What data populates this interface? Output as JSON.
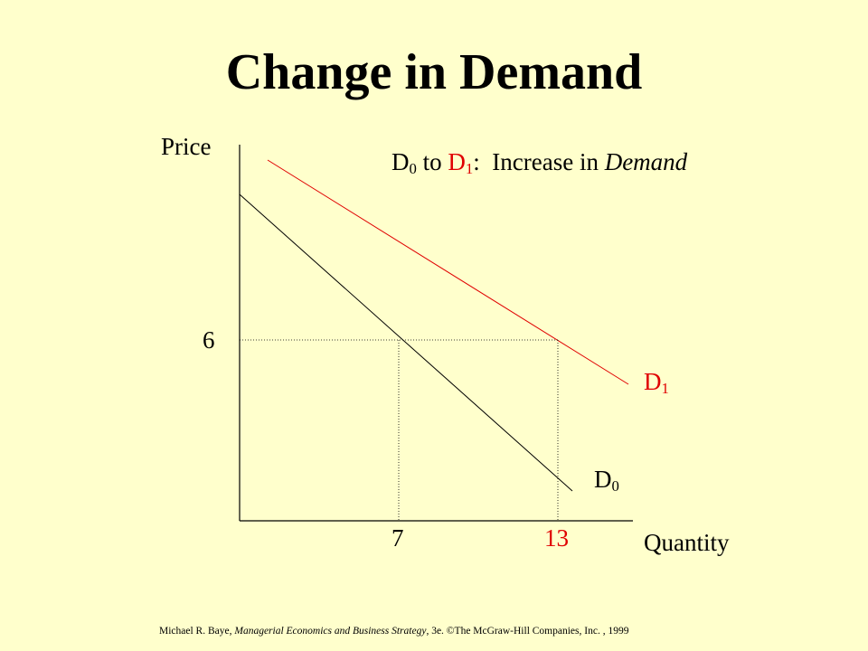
{
  "title": "Change in Demand",
  "axes": {
    "y_label": "Price",
    "x_label": "Quantity"
  },
  "annotation": {
    "from": {
      "base": "D",
      "sub": "0"
    },
    "to_word": " to ",
    "to": {
      "base": "D",
      "sub": "1"
    },
    "text": ":  Increase in ",
    "emphasis": "Demand"
  },
  "curves": [
    {
      "base": "D",
      "sub": "0"
    },
    {
      "base": "D",
      "sub": "1"
    }
  ],
  "ticks": {
    "price": "6",
    "quantity_0": "7",
    "quantity_1": "13"
  },
  "footer": {
    "author": "Michael R. Baye, ",
    "book": "Managerial Economics and Business Strategy",
    "rest": ", 3e. ©The McGraw-Hill Companies, Inc. , 1999"
  }
}
